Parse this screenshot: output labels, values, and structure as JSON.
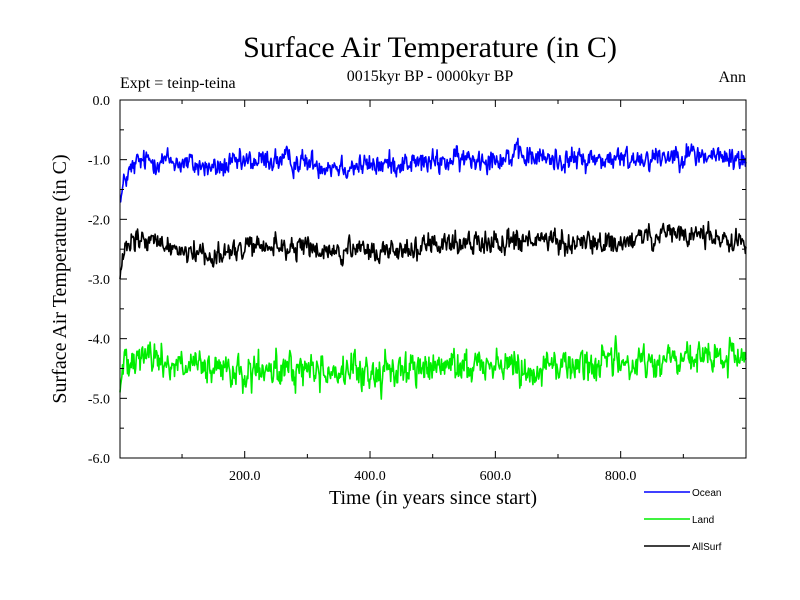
{
  "chart_data": {
    "type": "line",
    "title": "Surface Air Temperature (in C)",
    "subtitle": "0015kyr BP - 0000kyr BP",
    "left_label": "Expt = teinp-teina",
    "right_label": "Ann",
    "xlabel": "Time (in years since start)",
    "ylabel": "Surface Air Temperature (in C)",
    "xlim": [
      1,
      1000
    ],
    "ylim": [
      -6.0,
      0.0
    ],
    "xticks": [
      200,
      400,
      600,
      800
    ],
    "xtick_labels": [
      "200.0",
      "400.0",
      "600.0",
      "800.0"
    ],
    "yticks": [
      0,
      -1,
      -2,
      -3,
      -4,
      -5,
      -6
    ],
    "ytick_labels": [
      "0.0",
      "-1.0",
      "-2.0",
      "-3.0",
      "-4.0",
      "-5.0",
      "-6.0"
    ],
    "legend_position": "below-right",
    "n_points": 1000,
    "series": [
      {
        "name": "Ocean",
        "color": "#0000ff",
        "start": -1.7,
        "control_x": [
          0,
          10,
          30,
          60,
          100,
          150,
          200,
          250,
          300,
          350,
          400,
          450,
          500,
          550,
          600,
          650,
          700,
          750,
          800,
          850,
          900,
          950,
          1000
        ],
        "control_y": [
          -1.75,
          -1.3,
          -1.05,
          -1.0,
          -1.05,
          -1.15,
          -1.05,
          -1.0,
          -1.05,
          -1.1,
          -1.1,
          -1.05,
          -1.05,
          -1.0,
          -0.95,
          -0.95,
          -1.0,
          -1.0,
          -1.0,
          -0.95,
          -0.9,
          -0.95,
          -1.0
        ],
        "noise": 0.15
      },
      {
        "name": "Land",
        "color": "#00ee00",
        "start": -4.9,
        "control_x": [
          0,
          10,
          30,
          60,
          100,
          150,
          200,
          250,
          300,
          350,
          400,
          450,
          500,
          550,
          600,
          650,
          700,
          750,
          800,
          850,
          900,
          950,
          1000
        ],
        "control_y": [
          -4.9,
          -4.3,
          -4.2,
          -4.35,
          -4.45,
          -4.55,
          -4.6,
          -4.55,
          -4.5,
          -4.55,
          -4.6,
          -4.5,
          -4.5,
          -4.45,
          -4.4,
          -4.5,
          -4.45,
          -4.4,
          -4.4,
          -4.4,
          -4.35,
          -4.35,
          -4.3
        ],
        "noise": 0.22
      },
      {
        "name": "AllSurf",
        "color": "#000000",
        "start": -3.0,
        "control_x": [
          0,
          10,
          30,
          60,
          100,
          150,
          200,
          250,
          300,
          350,
          400,
          450,
          500,
          550,
          600,
          650,
          700,
          750,
          800,
          850,
          900,
          950,
          1000
        ],
        "control_y": [
          -3.0,
          -2.5,
          -2.35,
          -2.4,
          -2.5,
          -2.6,
          -2.5,
          -2.45,
          -2.5,
          -2.55,
          -2.55,
          -2.5,
          -2.45,
          -2.4,
          -2.35,
          -2.35,
          -2.4,
          -2.4,
          -2.4,
          -2.3,
          -2.25,
          -2.3,
          -2.35
        ],
        "noise": 0.15
      }
    ]
  }
}
